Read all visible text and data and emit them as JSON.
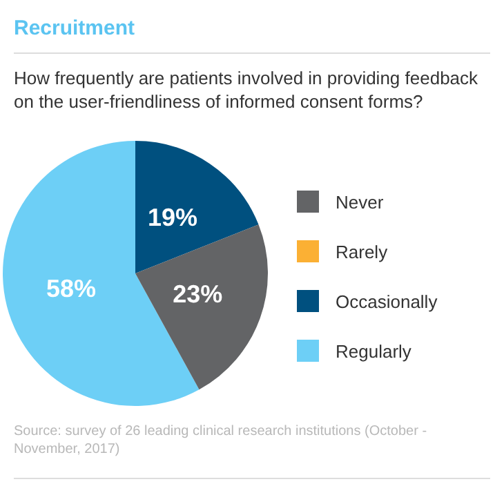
{
  "chart_data": {
    "type": "pie",
    "title": "Recruitment",
    "subtitle": "How frequently are patients involved in providing feedback on the user-friendliness of informed consent forms?",
    "categories": [
      "Never",
      "Rarely",
      "Occasionally",
      "Regularly"
    ],
    "values": [
      23,
      0,
      19,
      58
    ],
    "colors": [
      "#636466",
      "#fbb034",
      "#00507f",
      "#6dcff6"
    ],
    "value_labels": [
      "23%",
      null,
      "19%",
      "58%"
    ],
    "legend": "right",
    "annotations": [
      "Source: survey of 26 leading clinical research institutions (October - November, 2017)"
    ]
  }
}
